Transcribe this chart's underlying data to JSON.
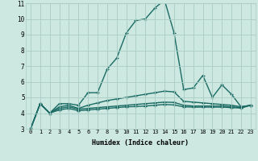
{
  "xlabel": "Humidex (Indice chaleur)",
  "background_color": "#cce8e0",
  "grid_color": "#aaccc4",
  "line_color": "#1a6b64",
  "xlim": [
    -0.5,
    23.5
  ],
  "ylim": [
    3,
    11
  ],
  "x_ticks": [
    0,
    1,
    2,
    3,
    4,
    5,
    6,
    7,
    8,
    9,
    10,
    11,
    12,
    13,
    14,
    15,
    16,
    17,
    18,
    19,
    20,
    21,
    22,
    23
  ],
  "y_ticks": [
    3,
    4,
    5,
    6,
    7,
    8,
    9,
    10,
    11
  ],
  "series": [
    [
      3.0,
      4.6,
      4.0,
      4.6,
      4.6,
      4.5,
      5.3,
      5.3,
      6.8,
      7.5,
      9.1,
      9.9,
      10.0,
      10.7,
      11.2,
      9.1,
      5.5,
      5.6,
      6.4,
      5.0,
      5.8,
      5.2,
      4.4,
      4.5
    ],
    [
      3.0,
      4.6,
      4.0,
      4.4,
      4.5,
      4.3,
      4.5,
      4.65,
      4.8,
      4.9,
      5.0,
      5.1,
      5.2,
      5.3,
      5.4,
      5.35,
      4.75,
      4.7,
      4.65,
      4.6,
      4.55,
      4.5,
      4.4,
      4.5
    ],
    [
      3.0,
      4.6,
      4.0,
      4.3,
      4.4,
      4.25,
      4.3,
      4.35,
      4.4,
      4.45,
      4.5,
      4.55,
      4.6,
      4.65,
      4.7,
      4.68,
      4.5,
      4.45,
      4.45,
      4.45,
      4.45,
      4.4,
      4.35,
      4.5
    ],
    [
      3.0,
      4.6,
      4.0,
      4.2,
      4.3,
      4.15,
      4.2,
      4.25,
      4.3,
      4.35,
      4.4,
      4.42,
      4.45,
      4.5,
      4.55,
      4.52,
      4.4,
      4.38,
      4.38,
      4.38,
      4.38,
      4.35,
      4.32,
      4.5
    ]
  ]
}
